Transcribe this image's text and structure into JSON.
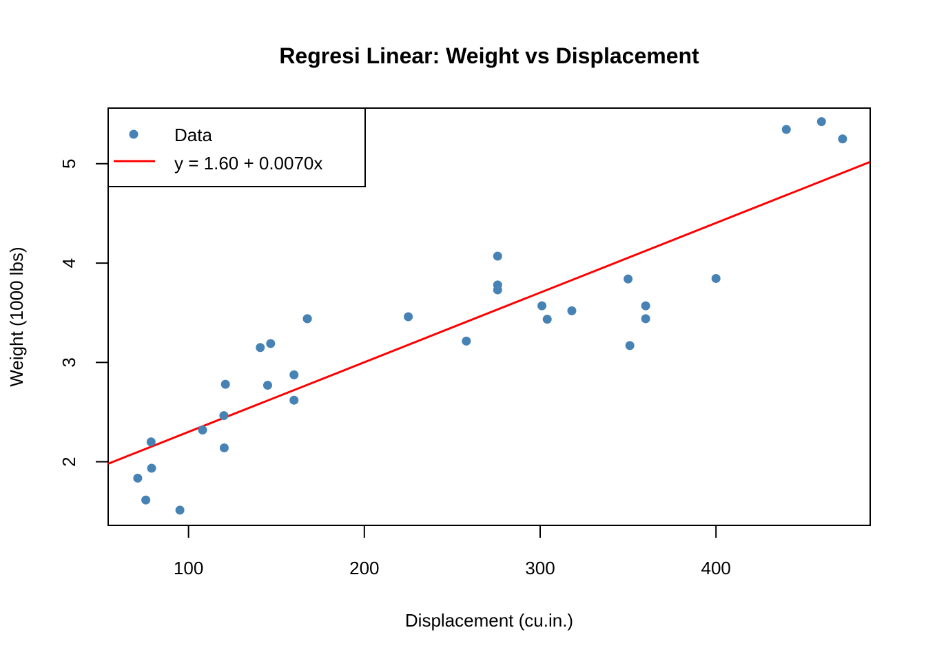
{
  "chart_data": {
    "type": "scatter",
    "title": "Regresi Linear: Weight vs Displacement",
    "xlabel": "Displacement (cu.in.)",
    "ylabel": "Weight (1000 lbs)",
    "xlim": [
      54.3,
      487.7
    ],
    "ylim": [
      1.36,
      5.56
    ],
    "xticks": [
      100,
      200,
      300,
      400
    ],
    "yticks": [
      2,
      3,
      4,
      5
    ],
    "grid": false,
    "legend": {
      "position": "top-left",
      "entries": [
        {
          "label": "Data",
          "type": "point",
          "color": "#4682B4"
        },
        {
          "label": "y = 1.60 + 0.0070x",
          "type": "line",
          "color": "#FF0000"
        }
      ]
    },
    "series": [
      {
        "name": "Data",
        "type": "scatter",
        "color": "#4682B4",
        "x": [
          160,
          160,
          108,
          258,
          360,
          225,
          360,
          146.7,
          140.8,
          167.6,
          167.6,
          275.8,
          275.8,
          275.8,
          472,
          460,
          440,
          78.7,
          75.7,
          71.1,
          120.1,
          318,
          304,
          350,
          400,
          79,
          120.3,
          95.1,
          351,
          145,
          301,
          121
        ],
        "y": [
          2.62,
          2.875,
          2.32,
          3.215,
          3.44,
          3.46,
          3.57,
          3.19,
          3.15,
          3.44,
          3.44,
          4.07,
          3.73,
          3.78,
          5.25,
          5.424,
          5.345,
          2.2,
          1.615,
          1.835,
          2.465,
          3.52,
          3.435,
          3.84,
          3.845,
          1.935,
          2.14,
          1.513,
          3.17,
          2.77,
          3.57,
          2.78
        ]
      },
      {
        "name": "y = 1.60 + 0.0070x",
        "type": "line",
        "color": "#FF0000",
        "intercept": 1.5998,
        "slope": 0.00701
      }
    ]
  }
}
